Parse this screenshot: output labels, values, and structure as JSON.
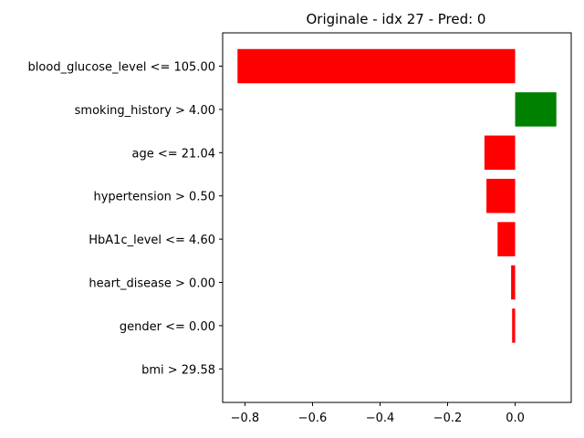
{
  "chart_data": {
    "type": "bar",
    "orientation": "horizontal",
    "title": "Originale - idx 27 - Pred: 0",
    "xlabel": "",
    "ylabel": "",
    "categories": [
      "blood_glucose_level <= 105.00",
      "smoking_history > 4.00",
      "age <= 21.04",
      "hypertension > 0.50",
      "HbA1c_level <= 4.60",
      "heart_disease > 0.00",
      "gender <= 0.00",
      "bmi > 29.58"
    ],
    "values": [
      -0.822,
      0.122,
      -0.091,
      -0.085,
      -0.052,
      -0.012,
      -0.009,
      0.0
    ],
    "xlim": [
      -0.866,
      0.166
    ],
    "xticks": [
      -0.8,
      -0.6,
      -0.4,
      -0.2,
      0.0
    ],
    "xtick_labels": [
      "−0.8",
      "−0.6",
      "−0.4",
      "−0.2",
      "0.0"
    ],
    "grid": false,
    "colors": {
      "positive": "#008000",
      "negative": "#ff0000"
    }
  }
}
